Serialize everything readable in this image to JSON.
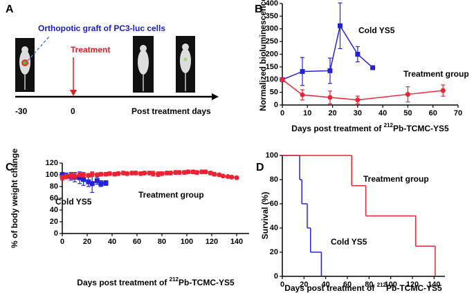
{
  "panel_a": {
    "panel_label": "A",
    "graft_label": "Orthopotic graft of PC3-luc cells",
    "treatment_label": "Treatment",
    "timeline": [
      "-30",
      "0",
      "Post treatment days"
    ]
  },
  "chart_data": [
    {
      "type": "line",
      "panel_label": "B",
      "ylabel": "Normalized bioluminescence",
      "xlabel": {
        "prefix": "Days post treatment of ",
        "sup": "212",
        "suffix": "Pb-TCMC-YS5"
      },
      "xlim": [
        0,
        70
      ],
      "xticks": [
        0,
        10,
        20,
        30,
        40,
        50,
        60,
        70
      ],
      "ylim": [
        0,
        400
      ],
      "yticks": [
        0,
        50,
        100,
        150,
        200,
        250,
        300,
        350,
        400
      ],
      "series": [
        {
          "name": "Cold YS5",
          "color": "#2222dd",
          "marker": "square",
          "x": [
            0,
            8,
            19,
            23,
            30,
            36
          ],
          "values": [
            100,
            132,
            135,
            312,
            200,
            147
          ],
          "errors": [
            0,
            55,
            50,
            90,
            30,
            0
          ]
        },
        {
          "name": "Treatment group",
          "color": "#ee2233",
          "marker": "circle",
          "x": [
            0,
            8,
            19,
            30,
            50,
            64
          ],
          "values": [
            100,
            40,
            30,
            20,
            42,
            57
          ],
          "errors": [
            0,
            20,
            25,
            15,
            30,
            22
          ]
        }
      ]
    },
    {
      "type": "line",
      "panel_label": "C",
      "ylabel": "% of body weight change",
      "xlabel": {
        "prefix": "Days post treatment of ",
        "sup": "212",
        "suffix": "Pb-TCMC-YS5"
      },
      "xlim": [
        0,
        150
      ],
      "xticks": [
        0,
        20,
        40,
        60,
        80,
        100,
        120,
        140
      ],
      "ylim": [
        0,
        120
      ],
      "yticks": [
        0,
        20,
        40,
        60,
        80,
        100,
        120
      ],
      "series": [
        {
          "name": "Cold YS5",
          "color": "#2222dd",
          "marker": "square",
          "x": [
            0,
            3,
            7,
            10,
            14,
            17,
            21,
            24,
            28,
            31,
            35
          ],
          "values": [
            100,
            98,
            97,
            96,
            95,
            92,
            88,
            85,
            90,
            85,
            86
          ],
          "errors": [
            4,
            5,
            6,
            8,
            10,
            10,
            8,
            15,
            6,
            5,
            4
          ]
        },
        {
          "name": "Treatment group",
          "color": "#ee2233",
          "marker": "circle",
          "x": [
            0,
            3,
            7,
            10,
            14,
            17,
            21,
            24,
            28,
            31,
            35,
            38,
            42,
            45,
            49,
            52,
            56,
            59,
            63,
            66,
            70,
            73,
            77,
            80,
            84,
            87,
            91,
            94,
            98,
            101,
            105,
            108,
            112,
            115,
            119,
            122,
            126,
            129,
            133,
            136,
            140
          ],
          "values": [
            95,
            97,
            99,
            98,
            100,
            100,
            99,
            101,
            100,
            101,
            101,
            102,
            101,
            102,
            103,
            102,
            103,
            103,
            102,
            103,
            103,
            102,
            101,
            102,
            103,
            103,
            104,
            104,
            104,
            105,
            105,
            104,
            105,
            105,
            103,
            101,
            100,
            98,
            97,
            96,
            95
          ],
          "errors": [
            4,
            4,
            5,
            4,
            3,
            4,
            3,
            4,
            3,
            3,
            3,
            3,
            3,
            3,
            3,
            3,
            3,
            3,
            3,
            3,
            3,
            4,
            4,
            3,
            3,
            3,
            3,
            3,
            3,
            3,
            3,
            3,
            3,
            3,
            3,
            3,
            2,
            2,
            2,
            2,
            2
          ]
        }
      ]
    },
    {
      "type": "step",
      "panel_label": "D",
      "ylabel": "Survival (%)",
      "xlabel": {
        "prefix": "Days post treatment of ",
        "sup": "212",
        "suffix": "Pb-TCMC-YS5"
      },
      "xlim": [
        0,
        150
      ],
      "xticks": [
        0,
        20,
        40,
        60,
        80,
        100,
        120,
        140
      ],
      "ylim": [
        0,
        100
      ],
      "yticks": [
        0,
        20,
        40,
        60,
        80,
        100
      ],
      "series": [
        {
          "name": "Cold YS5",
          "color": "#2222dd",
          "x": [
            0,
            16,
            18,
            23,
            26,
            36
          ],
          "values": [
            100,
            80,
            60,
            40,
            20,
            0
          ]
        },
        {
          "name": "Treatment group",
          "color": "#ee2233",
          "x": [
            0,
            64,
            77,
            123,
            141
          ],
          "values": [
            100,
            75,
            50,
            25,
            0
          ]
        }
      ]
    }
  ]
}
